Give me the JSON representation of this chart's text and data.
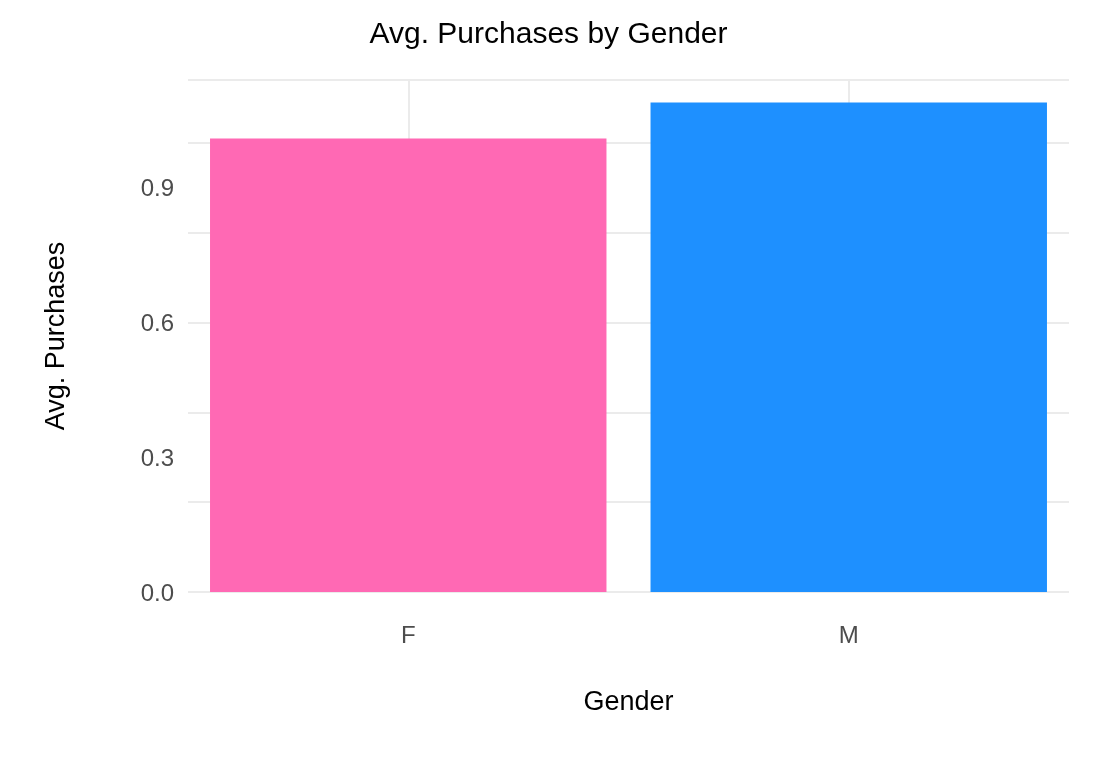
{
  "chart_data": {
    "type": "bar",
    "title": "Avg. Purchases by Gender",
    "xlabel": "Gender",
    "ylabel": "Avg. Purchases",
    "categories": [
      "F",
      "M"
    ],
    "values": [
      1.01,
      1.09
    ],
    "colors": [
      "#ff69b4",
      "#1e90ff"
    ],
    "ylim": [
      0,
      1.14
    ],
    "yticks": [
      {
        "value": 0,
        "label": "0.0"
      },
      0.3,
      0.6,
      0.9
    ],
    "grid": true
  }
}
